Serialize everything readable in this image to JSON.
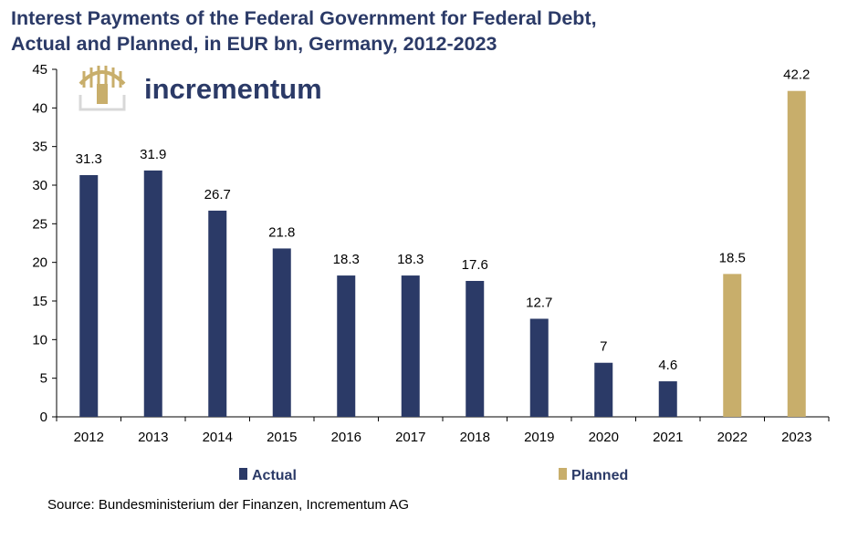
{
  "title_line1": "Interest Payments of the Federal Government for Federal Debt,",
  "title_line2": "Actual and Planned, in EUR bn, Germany, 2012-2023",
  "logo_text": "incrementum",
  "source": "Source: Bundesministerium der Finanzen, Incrementum AG",
  "colors": {
    "actual": "#2b3a67",
    "planned": "#c8ae6b",
    "title": "#2b3a67"
  },
  "chart_data": {
    "type": "bar",
    "title": "Interest Payments of the Federal Government for Federal Debt, Actual and Planned, in EUR bn, Germany, 2012-2023",
    "categories": [
      "2012",
      "2013",
      "2014",
      "2015",
      "2016",
      "2017",
      "2018",
      "2019",
      "2020",
      "2021",
      "2022",
      "2023"
    ],
    "values": [
      31.3,
      31.9,
      26.7,
      21.8,
      18.3,
      18.3,
      17.6,
      12.7,
      7,
      4.6,
      18.5,
      42.2
    ],
    "value_labels": [
      "31.3",
      "31.9",
      "26.7",
      "21.8",
      "18.3",
      "18.3",
      "17.6",
      "12.7",
      "7",
      "4.6",
      "18.5",
      "42.2"
    ],
    "series_by_bar": [
      "Actual",
      "Actual",
      "Actual",
      "Actual",
      "Actual",
      "Actual",
      "Actual",
      "Actual",
      "Actual",
      "Actual",
      "Planned",
      "Planned"
    ],
    "legend": [
      "Actual",
      "Planned"
    ],
    "legend_position": "bottom",
    "y_ticks": [
      "0",
      "5",
      "10",
      "15",
      "20",
      "25",
      "30",
      "35",
      "40",
      "45"
    ],
    "ylim": [
      0,
      45
    ],
    "xlabel": "",
    "ylabel": "",
    "grid": false
  }
}
